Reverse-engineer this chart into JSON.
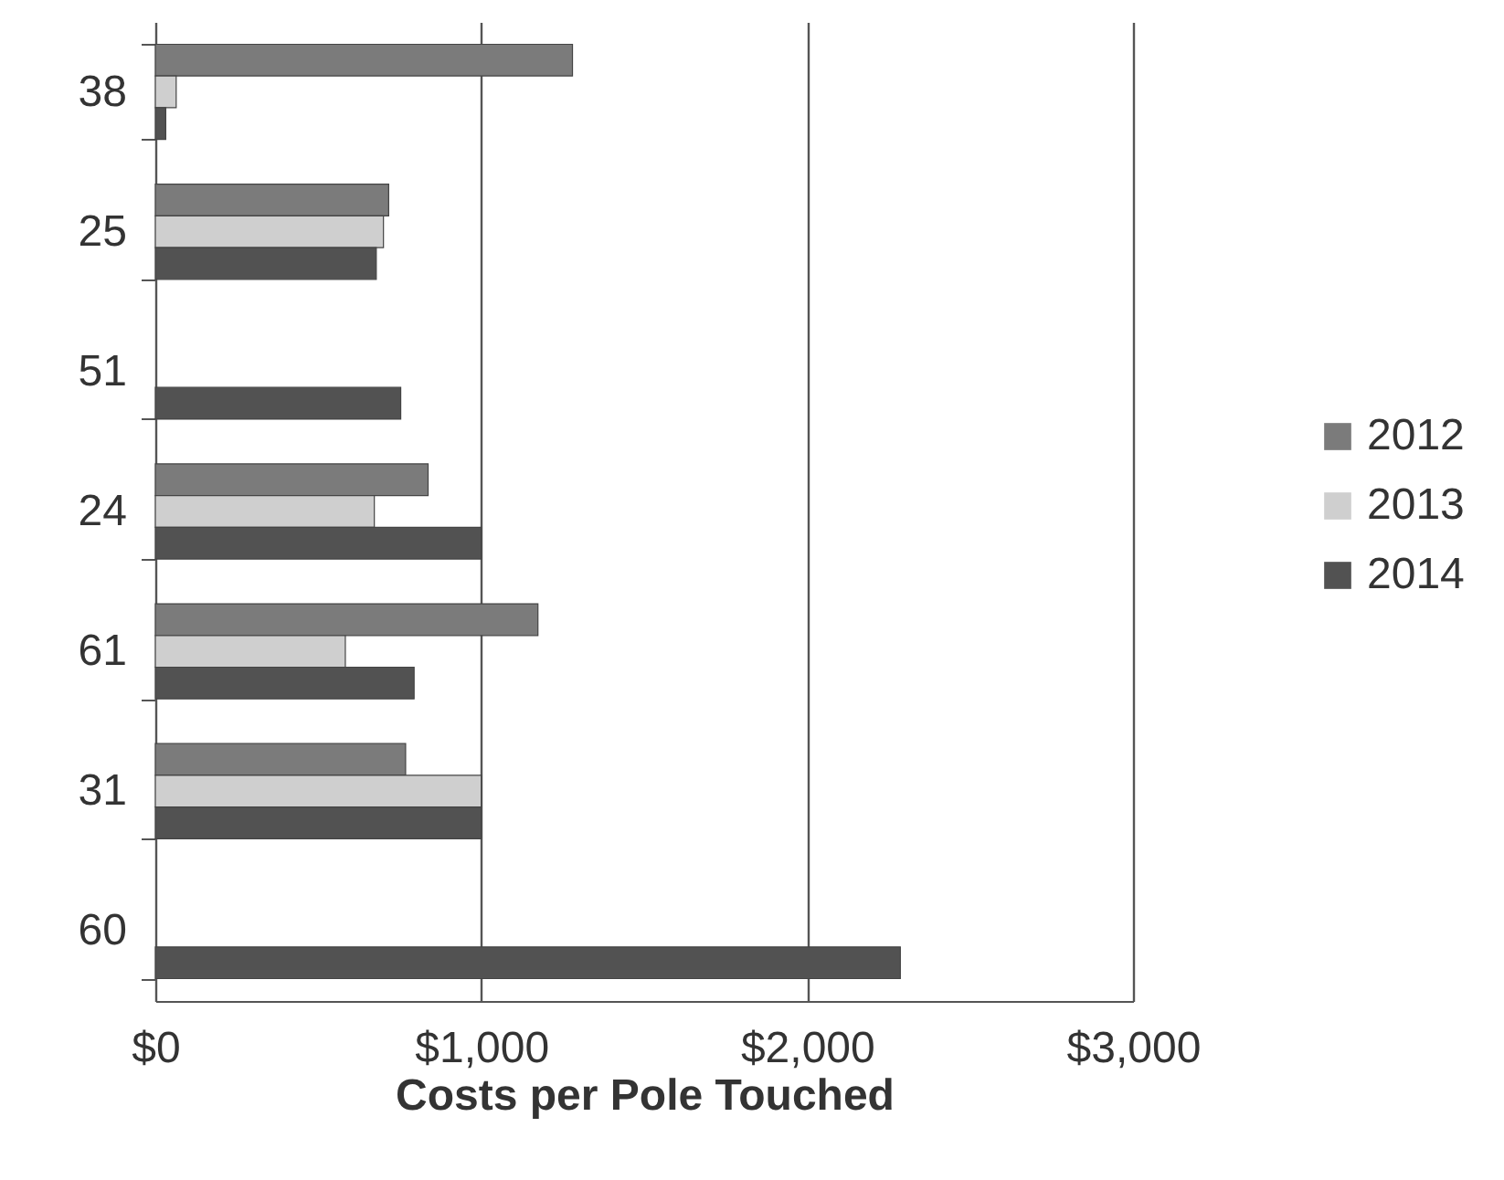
{
  "chart_data": {
    "type": "bar",
    "orientation": "horizontal",
    "xlabel": "Costs per Pole Touched",
    "categories": [
      "38",
      "25",
      "51",
      "24",
      "61",
      "31",
      "60"
    ],
    "series": [
      {
        "name": "2012",
        "color": "#7b7b7b",
        "values": [
          1280,
          716,
          null,
          837,
          1174,
          768,
          null
        ]
      },
      {
        "name": "2013",
        "color": "#cfcfcf",
        "values": [
          64,
          700,
          null,
          672,
          583,
          1000,
          null
        ]
      },
      {
        "name": "2014",
        "color": "#525252",
        "values": [
          32,
          678,
          753,
          1000,
          794,
          1000,
          2286
        ]
      }
    ],
    "xlim": [
      0,
      3000
    ],
    "xticks": [
      {
        "value": 0,
        "label": "$0"
      },
      {
        "value": 1000,
        "label": "$1,000"
      },
      {
        "value": 2000,
        "label": "$2,000"
      },
      {
        "value": 3000,
        "label": "$3,000"
      }
    ],
    "grid": "x",
    "legend": "right"
  }
}
